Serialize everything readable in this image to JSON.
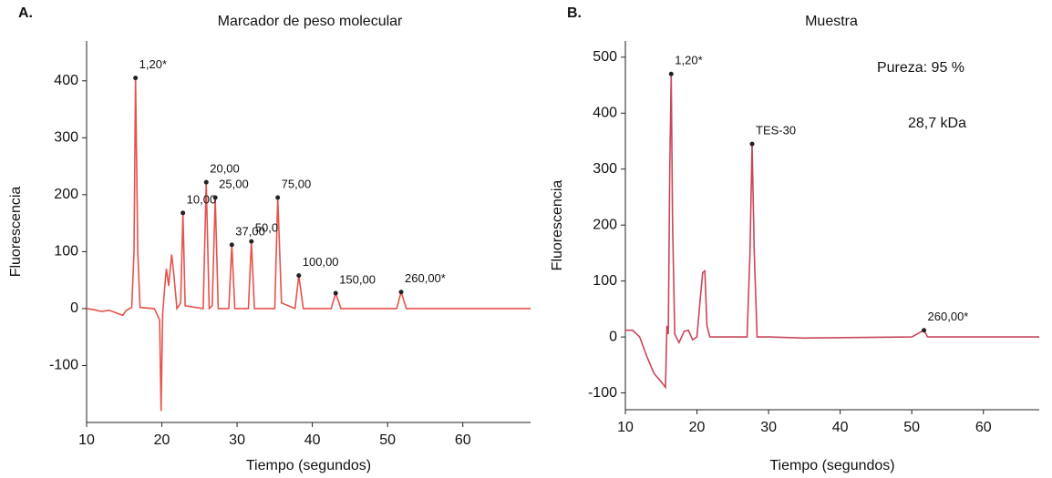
{
  "chart_data": [
    {
      "type": "line",
      "panel": "A.",
      "title": "Marcador de peso molecular",
      "x_label": "Tiempo (segundos)",
      "y_label": "Fluorescencia",
      "color": "#e5534b",
      "xlim": [
        10,
        69
      ],
      "ylim": [
        -200,
        470
      ],
      "xticks": [
        10,
        20,
        30,
        40,
        50,
        60
      ],
      "yticks": [
        -100,
        0,
        100,
        200,
        300,
        400
      ],
      "x": [
        10,
        11,
        12,
        13,
        14,
        14.8,
        15.3,
        16,
        16.3,
        16.5,
        16.8,
        17.1,
        19,
        19.7,
        19.9,
        20.1,
        20.4,
        20.6,
        20.9,
        21.3,
        21.6,
        22,
        22.5,
        22.8,
        23.1,
        25.5,
        25.9,
        26.3,
        26.7,
        27.1,
        27.5,
        28.9,
        29.3,
        29.7,
        31.5,
        31.9,
        32.3,
        35,
        35.4,
        35.9,
        37.7,
        38.2,
        38.8,
        42.5,
        43.1,
        43.8,
        51.2,
        51.8,
        52.5,
        69
      ],
      "values": [
        0,
        -2,
        -5,
        -3,
        -8,
        -12,
        -3,
        2,
        100,
        405,
        100,
        2,
        0,
        -20,
        -180,
        -10,
        40,
        70,
        40,
        95,
        60,
        0,
        10,
        168,
        5,
        0,
        222,
        0,
        5,
        195,
        0,
        0,
        112,
        0,
        0,
        118,
        0,
        0,
        195,
        10,
        0,
        58,
        0,
        0,
        27,
        0,
        0,
        29,
        0,
        0
      ],
      "peaks": [
        {
          "label": "1,20*",
          "x": 16.5,
          "y": 405
        },
        {
          "label": "10,00",
          "x": 22.8,
          "y": 168
        },
        {
          "label": "20,00",
          "x": 25.9,
          "y": 222
        },
        {
          "label": "25,00",
          "x": 27.1,
          "y": 195
        },
        {
          "label": "37,00",
          "x": 29.3,
          "y": 112
        },
        {
          "label": "50,0",
          "x": 31.9,
          "y": 118
        },
        {
          "label": "75,00",
          "x": 35.4,
          "y": 195
        },
        {
          "label": "100,00",
          "x": 38.2,
          "y": 58
        },
        {
          "label": "150,00",
          "x": 43.1,
          "y": 27
        },
        {
          "label": "260,00*",
          "x": 51.8,
          "y": 29
        }
      ],
      "notes": []
    },
    {
      "type": "line",
      "panel": "B.",
      "title": "Muestra",
      "x_label": "Tiempo (segundos)",
      "y_label": "Fluorescencia",
      "color": "#c8465a",
      "xlim": [
        10,
        67.8
      ],
      "ylim": [
        -130,
        529
      ],
      "xticks": [
        10,
        20,
        30,
        40,
        50,
        60
      ],
      "yticks": [
        -100,
        0,
        100,
        200,
        300,
        400,
        500
      ],
      "x": [
        10,
        11,
        12,
        13,
        14,
        15,
        15.6,
        15.8,
        16,
        16.2,
        16.4,
        16.6,
        16.9,
        17.5,
        18.2,
        18.8,
        19.4,
        20,
        20.4,
        20.8,
        21.1,
        21.4,
        21.8,
        27,
        27.4,
        27.7,
        28,
        28.4,
        30,
        35,
        50,
        51.4,
        51.7,
        52.2,
        67.8
      ],
      "values": [
        12,
        12,
        0,
        -35,
        -65,
        -80,
        -90,
        20,
        5,
        300,
        470,
        200,
        5,
        -10,
        10,
        12,
        -5,
        0,
        60,
        115,
        118,
        20,
        0,
        0,
        150,
        345,
        150,
        0,
        0,
        -2,
        0,
        10,
        12,
        0,
        0
      ],
      "peaks": [
        {
          "label": "1,20*",
          "x": 16.4,
          "y": 470
        },
        {
          "label": "TES-30",
          "x": 27.7,
          "y": 345
        },
        {
          "label": "260,00*",
          "x": 51.7,
          "y": 12
        }
      ],
      "notes": [
        "Pureza: 95 %",
        "28,7 kDa"
      ]
    }
  ]
}
